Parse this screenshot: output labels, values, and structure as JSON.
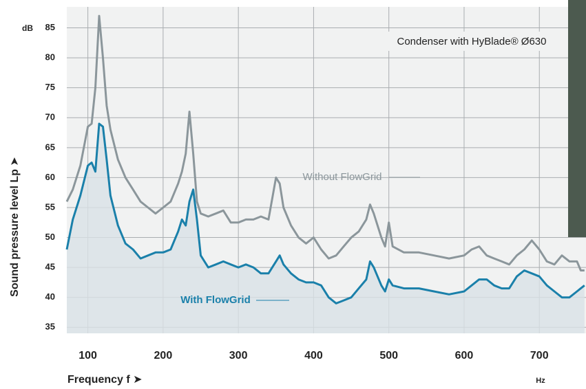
{
  "chart_data": {
    "type": "line",
    "title": "Condenser with HyBlade® Ø630",
    "y_label": "Sound pressure level Lp ➤",
    "y_unit": "dB",
    "x_label": "Frequency f ➤",
    "x_unit": "Hz",
    "x": [
      72,
      80,
      90,
      100,
      105,
      110,
      115,
      120,
      125,
      130,
      140,
      150,
      160,
      170,
      180,
      190,
      200,
      210,
      220,
      225,
      230,
      235,
      240,
      245,
      250,
      260,
      270,
      280,
      290,
      300,
      310,
      320,
      330,
      340,
      350,
      355,
      360,
      370,
      380,
      390,
      400,
      410,
      420,
      430,
      440,
      450,
      460,
      470,
      475,
      480,
      490,
      495,
      500,
      505,
      520,
      540,
      560,
      580,
      600,
      610,
      620,
      630,
      640,
      650,
      660,
      670,
      680,
      690,
      700,
      710,
      720,
      730,
      740,
      750,
      755,
      760
    ],
    "series": [
      {
        "name": "Without FlowGrid",
        "color": "#8b969b",
        "values": [
          56,
          58,
          62,
          68.5,
          69,
          75,
          87,
          80,
          72,
          68,
          63,
          60,
          58,
          56,
          55,
          54,
          55,
          56,
          59,
          61,
          64,
          71,
          64,
          56,
          54,
          53.5,
          54,
          54.5,
          52.5,
          52.5,
          53,
          53,
          53.5,
          53,
          60,
          59,
          55,
          52,
          50,
          49,
          50,
          48,
          46.5,
          47,
          48.5,
          50,
          51,
          53,
          55.5,
          54,
          50,
          48.5,
          52.5,
          48.5,
          47.5,
          47.5,
          47,
          46.5,
          47,
          48,
          48.5,
          47,
          46.5,
          46,
          45.5,
          47,
          48,
          49.5,
          48,
          46,
          45.5,
          47,
          46,
          46,
          44.5,
          44.5
        ]
      },
      {
        "name": "With FlowGrid",
        "color": "#1a80aa",
        "fill": true,
        "values": [
          48,
          53,
          57,
          62,
          62.5,
          61,
          69,
          68.5,
          63,
          57,
          52,
          49,
          48,
          46.5,
          47,
          47.5,
          47.5,
          48,
          51,
          53,
          52,
          56,
          58,
          53,
          47,
          45,
          45.5,
          46,
          45.5,
          45,
          45.5,
          45,
          44,
          44,
          46,
          47,
          45.5,
          44,
          43,
          42.5,
          42.5,
          42,
          40,
          39,
          39.5,
          40,
          41.5,
          43,
          46,
          45,
          42,
          41,
          43,
          42,
          41.5,
          41.5,
          41,
          40.5,
          41,
          42,
          43,
          43,
          42,
          41.5,
          41.5,
          43.5,
          44.5,
          44,
          43.5,
          42,
          41,
          40,
          40,
          41,
          41.5,
          42
        ]
      }
    ],
    "xlim": [
      72,
      762
    ],
    "ylim": [
      34,
      88.5
    ],
    "xticks": [
      100,
      200,
      300,
      400,
      500,
      600,
      700
    ],
    "yticks": [
      35,
      40,
      45,
      50,
      55,
      60,
      65,
      70,
      75,
      80,
      85
    ],
    "grid": true
  }
}
